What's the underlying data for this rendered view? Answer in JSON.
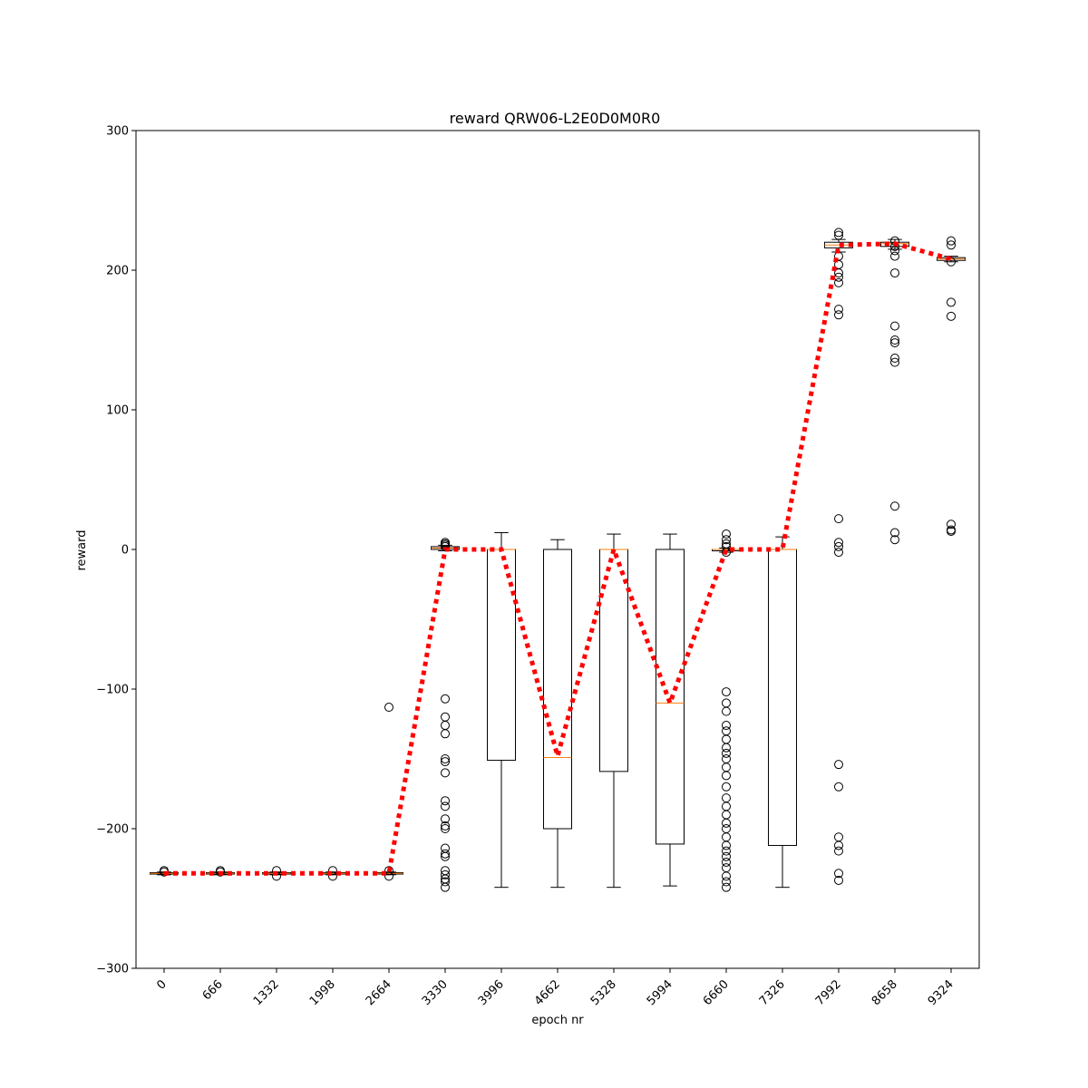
{
  "chart_data": {
    "type": "box",
    "title": "reward QRW06-L2E0D0M0R0",
    "xlabel": "epoch nr",
    "ylabel": "reward",
    "ylim": [
      -300,
      300
    ],
    "yticks": [
      -300,
      -200,
      -100,
      0,
      100,
      200,
      300
    ],
    "categories": [
      "0",
      "666",
      "1332",
      "1998",
      "2664",
      "3330",
      "3996",
      "4662",
      "5328",
      "5994",
      "6660",
      "7326",
      "7992",
      "8658",
      "9324"
    ],
    "tick_rotation_deg": 45,
    "grid": false,
    "mean_line": {
      "color": "#ff0000",
      "style": "dotted"
    },
    "median_color": "#ff7f0e",
    "boxes": [
      {
        "x": "0",
        "q1": -232.5,
        "median": -232,
        "q3": -231.5,
        "whislo": -233,
        "whishi": -231,
        "fliers": [
          -230,
          -231
        ],
        "mean": -232
      },
      {
        "x": "666",
        "q1": -232.5,
        "median": -232,
        "q3": -231.5,
        "whislo": -233,
        "whishi": -231,
        "fliers": [
          -230,
          -231
        ],
        "mean": -232
      },
      {
        "x": "1332",
        "q1": -232.5,
        "median": -232,
        "q3": -231.5,
        "whislo": -233,
        "whishi": -231,
        "fliers": [
          -230,
          -234
        ],
        "mean": -232
      },
      {
        "x": "1998",
        "q1": -232.5,
        "median": -232,
        "q3": -231.5,
        "whislo": -233,
        "whishi": -231,
        "fliers": [
          -230,
          -234
        ],
        "mean": -232
      },
      {
        "x": "2664",
        "q1": -232.5,
        "median": -232,
        "q3": -231.5,
        "whislo": -233,
        "whishi": -231,
        "fliers": [
          -113,
          -230,
          -234
        ],
        "mean": -232
      },
      {
        "x": "3330",
        "q1": 0,
        "median": 1,
        "q3": 2,
        "whislo": -1,
        "whishi": 3,
        "fliers": [
          2,
          3,
          4,
          5,
          -107,
          -120,
          -126,
          -132,
          -150,
          -152,
          -160,
          -180,
          -184,
          -193,
          -198,
          -200,
          -214,
          -218,
          -220,
          -230,
          -233,
          -236,
          -238,
          -242
        ],
        "mean": 0
      },
      {
        "x": "3996",
        "q1": -151,
        "median": 0,
        "q3": 0,
        "whislo": -242,
        "whishi": 12,
        "fliers": [],
        "mean": 0
      },
      {
        "x": "4662",
        "q1": -200,
        "median": -149,
        "q3": 0,
        "whislo": -242,
        "whishi": 7,
        "fliers": [],
        "mean": -148
      },
      {
        "x": "5328",
        "q1": -159,
        "median": 0,
        "q3": 0,
        "whislo": -242,
        "whishi": 11,
        "fliers": [],
        "mean": 0
      },
      {
        "x": "5994",
        "q1": -211,
        "median": -110,
        "q3": 0,
        "whislo": -241,
        "whishi": 11,
        "fliers": [],
        "mean": -110
      },
      {
        "x": "6660",
        "q1": -1,
        "median": 0,
        "q3": 0,
        "whislo": -2,
        "whishi": 1,
        "fliers": [
          11,
          7,
          4,
          2,
          -2,
          -102,
          -110,
          -116,
          -126,
          -130,
          -136,
          -142,
          -146,
          -150,
          -156,
          -162,
          -170,
          -178,
          -184,
          -190,
          -196,
          -200,
          -206,
          -212,
          -216,
          -220,
          -224,
          -228,
          -234,
          -238,
          -242
        ],
        "mean": 0
      },
      {
        "x": "7326",
        "q1": -212,
        "median": 0,
        "q3": 0,
        "whislo": -242,
        "whishi": 9,
        "fliers": [],
        "mean": 0
      },
      {
        "x": "7992",
        "q1": 216,
        "median": 218,
        "q3": 220,
        "whislo": 213,
        "whishi": 222,
        "fliers": [
          227,
          225,
          210,
          204,
          198,
          195,
          191,
          172,
          168,
          22,
          5,
          2,
          -2,
          -154,
          -170,
          -206,
          -212,
          -216,
          -232,
          -237
        ],
        "mean": 218
      },
      {
        "x": "8658",
        "q1": 217,
        "median": 219,
        "q3": 220,
        "whislo": 215,
        "whishi": 222,
        "fliers": [
          221,
          217,
          214,
          210,
          198,
          160,
          150,
          148,
          137,
          134,
          31,
          12,
          7
        ],
        "mean": 219
      },
      {
        "x": "9324",
        "q1": 207,
        "median": 208,
        "q3": 209,
        "whislo": 206,
        "whishi": 210,
        "fliers": [
          221,
          218,
          206,
          177,
          167,
          18,
          14,
          13
        ],
        "mean": 208
      }
    ]
  }
}
